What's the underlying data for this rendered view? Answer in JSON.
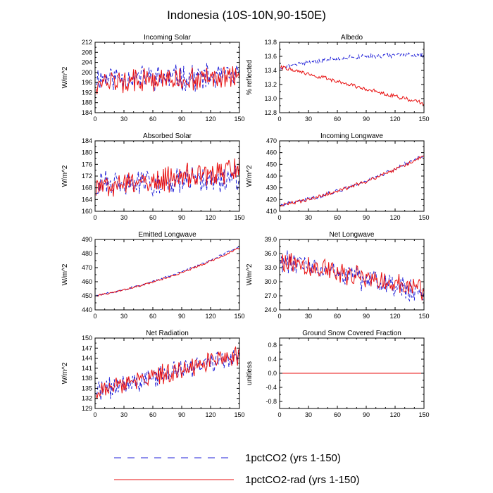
{
  "figure": {
    "title": "Indonesia (10S-10N,90-150E)",
    "legend": [
      {
        "label": "1pctCO2 (yrs 1-150)",
        "color": "#2020d8",
        "dash": "dashed"
      },
      {
        "label": "1pctCO2-rad (yrs 1-150)",
        "color": "#e81010",
        "dash": "solid"
      }
    ],
    "legend_placement": "bottom"
  },
  "chart_data": [
    {
      "type": "line",
      "title": "Incoming Solar",
      "xlabel": "",
      "ylabel": "W/m^2",
      "xlim": [
        0,
        150
      ],
      "ylim": [
        184,
        212
      ],
      "xticks": [
        "0",
        "30",
        "60",
        "90",
        "120",
        "150"
      ],
      "yticks": [
        "184",
        "188",
        "192",
        "196",
        "200",
        "204",
        "208",
        "212"
      ],
      "series": [
        {
          "name": "1pctCO2 (yrs 1-150)",
          "gen": {
            "start": 198,
            "end": 198,
            "amp": 4.5,
            "seed": 11
          }
        },
        {
          "name": "1pctCO2-rad (yrs 1-150)",
          "gen": {
            "start": 196,
            "end": 198,
            "amp": 4.0,
            "seed": 12
          }
        }
      ]
    },
    {
      "type": "line",
      "title": "Albedo",
      "xlabel": "",
      "ylabel": "% reflected",
      "xlim": [
        0,
        150
      ],
      "ylim": [
        12.8,
        13.8
      ],
      "xticks": [
        "0",
        "30",
        "60",
        "90",
        "120",
        "150"
      ],
      "yticks": [
        "12.8",
        "13.0",
        "13.2",
        "13.4",
        "13.6",
        "13.8"
      ],
      "series": [
        {
          "name": "1pctCO2 (yrs 1-150)",
          "gen": {
            "start": 13.44,
            "end": 13.62,
            "amp": 0.03,
            "seed": 21,
            "shape": "sat"
          }
        },
        {
          "name": "1pctCO2-rad (yrs 1-150)",
          "gen": {
            "start": 13.45,
            "end": 12.93,
            "amp": 0.025,
            "seed": 22
          }
        }
      ]
    },
    {
      "type": "line",
      "title": "Absorbed Solar",
      "xlabel": "",
      "ylabel": "W/m^2",
      "xlim": [
        0,
        150
      ],
      "ylim": [
        160,
        184
      ],
      "xticks": [
        "0",
        "30",
        "60",
        "90",
        "120",
        "150"
      ],
      "yticks": [
        "160",
        "164",
        "168",
        "172",
        "176",
        "180",
        "184"
      ],
      "series": [
        {
          "name": "1pctCO2 (yrs 1-150)",
          "gen": {
            "start": 169,
            "end": 171,
            "amp": 4.0,
            "seed": 31
          }
        },
        {
          "name": "1pctCO2-rad (yrs 1-150)",
          "gen": {
            "start": 168,
            "end": 174,
            "amp": 3.8,
            "seed": 32
          }
        }
      ]
    },
    {
      "type": "line",
      "title": "Incoming Longwave",
      "xlabel": "",
      "ylabel": "W/m^2",
      "xlim": [
        0,
        150
      ],
      "ylim": [
        410,
        470
      ],
      "xticks": [
        "0",
        "30",
        "60",
        "90",
        "120",
        "150"
      ],
      "yticks": [
        "410",
        "420",
        "430",
        "440",
        "450",
        "460",
        "470"
      ],
      "series": [
        {
          "name": "1pctCO2 (yrs 1-150)",
          "gen": {
            "start": 415,
            "end": 458,
            "amp": 1.4,
            "seed": 41,
            "shape": "conv"
          }
        },
        {
          "name": "1pctCO2-rad (yrs 1-150)",
          "gen": {
            "start": 415,
            "end": 457,
            "amp": 1.4,
            "seed": 42,
            "shape": "conv"
          }
        }
      ]
    },
    {
      "type": "line",
      "title": "Emitted Longwave",
      "xlabel": "",
      "ylabel": "W/m^2",
      "xlim": [
        0,
        150
      ],
      "ylim": [
        440,
        490
      ],
      "xticks": [
        "0",
        "30",
        "60",
        "90",
        "120",
        "150"
      ],
      "yticks": [
        "440",
        "450",
        "460",
        "470",
        "480",
        "490"
      ],
      "series": [
        {
          "name": "1pctCO2 (yrs 1-150)",
          "gen": {
            "start": 450,
            "end": 485,
            "amp": 0.6,
            "seed": 51,
            "shape": "conv"
          }
        },
        {
          "name": "1pctCO2-rad (yrs 1-150)",
          "gen": {
            "start": 450,
            "end": 484,
            "amp": 0.6,
            "seed": 52,
            "shape": "conv"
          }
        }
      ]
    },
    {
      "type": "line",
      "title": "Net Longwave",
      "xlabel": "",
      "ylabel": "W/m^2",
      "xlim": [
        0,
        150
      ],
      "ylim": [
        24.0,
        39.0
      ],
      "xticks": [
        "0",
        "30",
        "60",
        "90",
        "120",
        "150"
      ],
      "yticks": [
        "24.0",
        "27.0",
        "30.0",
        "33.0",
        "36.0",
        "39.0"
      ],
      "series": [
        {
          "name": "1pctCO2 (yrs 1-150)",
          "gen": {
            "start": 34.5,
            "end": 27.5,
            "amp": 2.2,
            "seed": 61
          }
        },
        {
          "name": "1pctCO2-rad (yrs 1-150)",
          "gen": {
            "start": 34.5,
            "end": 28.5,
            "amp": 2.0,
            "seed": 62
          }
        }
      ]
    },
    {
      "type": "line",
      "title": "Net Radiation",
      "xlabel": "",
      "ylabel": "W/m^2",
      "xlim": [
        0,
        150
      ],
      "ylim": [
        129,
        150
      ],
      "xticks": [
        "0",
        "30",
        "60",
        "90",
        "120",
        "150"
      ],
      "yticks": [
        "129",
        "132",
        "135",
        "138",
        "141",
        "144",
        "147",
        "150"
      ],
      "series": [
        {
          "name": "1pctCO2 (yrs 1-150)",
          "gen": {
            "start": 134,
            "end": 145,
            "amp": 2.8,
            "seed": 71
          }
        },
        {
          "name": "1pctCO2-rad (yrs 1-150)",
          "gen": {
            "start": 134,
            "end": 145,
            "amp": 2.6,
            "seed": 72
          }
        }
      ]
    },
    {
      "type": "line",
      "title": "Ground Snow Covered Fraction",
      "xlabel": "",
      "ylabel": "unitless",
      "xlim": [
        0,
        150
      ],
      "ylim": [
        -1.0,
        1.0
      ],
      "xticks": [
        "0",
        "30",
        "60",
        "90",
        "120",
        "150"
      ],
      "yticks": [
        "-0.8",
        "-0.4",
        "0.0",
        "0.4",
        "0.8"
      ],
      "series": [
        {
          "name": "1pctCO2 (yrs 1-150)",
          "gen": {
            "start": 0,
            "end": 0,
            "amp": 0,
            "seed": 81
          }
        },
        {
          "name": "1pctCO2-rad (yrs 1-150)",
          "gen": {
            "start": 0,
            "end": 0,
            "amp": 0,
            "seed": 82
          }
        }
      ]
    }
  ]
}
